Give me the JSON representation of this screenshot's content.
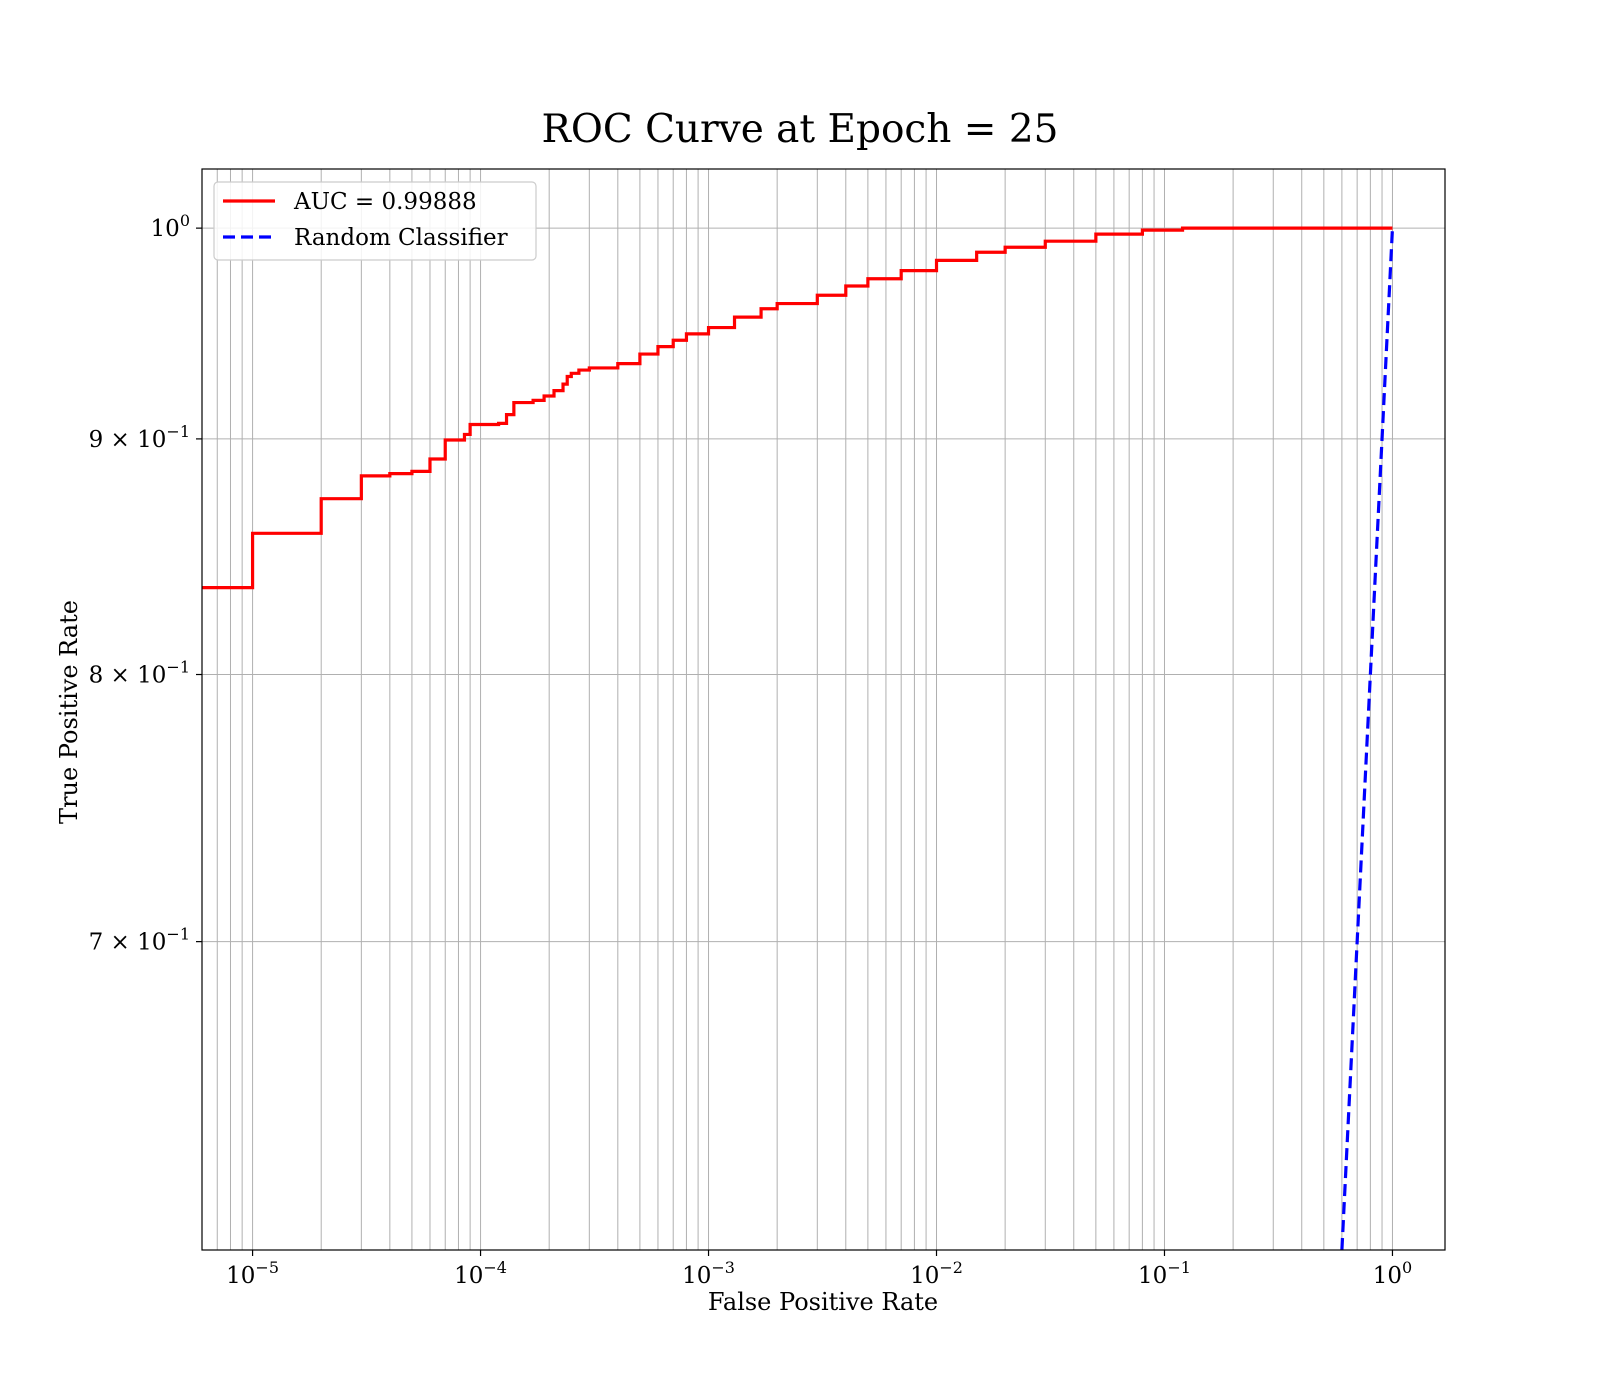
{
  "chart_data": {
    "type": "line",
    "title": "ROC Curve at Epoch = 25",
    "xlabel": "False Positive Rate",
    "ylabel": "True Positive Rate",
    "xscale": "log",
    "yscale": "log",
    "xlim": [
      6e-06,
      1.7
    ],
    "ylim": [
      0.6,
      1.03
    ],
    "grid": true,
    "grid_minor": true,
    "legend_position": "upper-left",
    "x_ticks": [
      {
        "value": 1e-05,
        "base": "10",
        "exp": "−5"
      },
      {
        "value": 0.0001,
        "base": "10",
        "exp": "−4"
      },
      {
        "value": 0.001,
        "base": "10",
        "exp": "−3"
      },
      {
        "value": 0.01,
        "base": "10",
        "exp": "−2"
      },
      {
        "value": 0.1,
        "base": "10",
        "exp": "−1"
      },
      {
        "value": 1,
        "base": "10",
        "exp": "0"
      }
    ],
    "y_ticks": [
      {
        "value": 1.0,
        "mant": "",
        "base": "10",
        "exp": "0"
      },
      {
        "value": 0.9,
        "mant": "9 × ",
        "base": "10",
        "exp": "−1"
      },
      {
        "value": 0.8,
        "mant": "8 × ",
        "base": "10",
        "exp": "−1"
      },
      {
        "value": 0.7,
        "mant": "7 × ",
        "base": "10",
        "exp": "−1"
      }
    ],
    "series": [
      {
        "name": "AUC = 0.99888",
        "color": "#ff0000",
        "style": "solid",
        "step": true,
        "x": [
          6e-06,
          1e-05,
          2e-05,
          3e-05,
          4e-05,
          5e-05,
          6e-05,
          7e-05,
          8.5e-05,
          9e-05,
          0.00012,
          0.00013,
          0.00014,
          0.00017,
          0.00019,
          0.00021,
          0.00023,
          0.00024,
          0.00025,
          0.00027,
          0.0003,
          0.0004,
          0.0005,
          0.0006,
          0.0007,
          0.0008,
          0.001,
          0.0013,
          0.0017,
          0.002,
          0.003,
          0.004,
          0.005,
          0.007,
          0.01,
          0.015,
          0.02,
          0.03,
          0.05,
          0.08,
          0.12,
          0.17,
          0.23,
          1
        ],
        "y": [
          0.8355,
          0.8585,
          0.8735,
          0.8835,
          0.8845,
          0.8855,
          0.891,
          0.8995,
          0.902,
          0.9065,
          0.907,
          0.911,
          0.9165,
          0.9175,
          0.9195,
          0.922,
          0.925,
          0.9285,
          0.93,
          0.9315,
          0.9325,
          0.9345,
          0.939,
          0.9425,
          0.9455,
          0.9485,
          0.9515,
          0.9565,
          0.9605,
          0.963,
          0.967,
          0.9715,
          0.975,
          0.979,
          0.984,
          0.988,
          0.9905,
          0.9935,
          0.997,
          0.999,
          1.0,
          1.0,
          1.0,
          1.0
        ]
      },
      {
        "name": "Random Classifier",
        "color": "#0000ff",
        "style": "dashed",
        "step": false,
        "x": [
          0,
          1
        ],
        "y": [
          0,
          1
        ]
      }
    ]
  }
}
